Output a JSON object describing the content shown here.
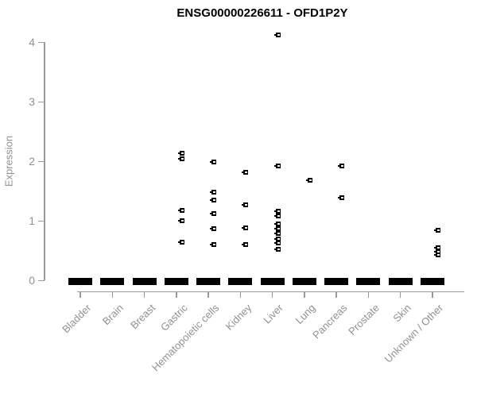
{
  "title": "ENSG00000226611 - OFD1P2Y",
  "colors": {
    "points": "#000000",
    "zero_bars": "#000000",
    "axis": "#9a9a9a",
    "tick_labels": "#919191",
    "title": "#000000",
    "background": "#ffffff"
  },
  "chart_data": {
    "type": "scatter",
    "subtype": "strip-plot-with-collapsed-boxplots",
    "title": "ENSG00000226611 - OFD1P2Y",
    "xlabel": "",
    "ylabel": "Expression",
    "ylim": [
      0,
      4
    ],
    "yticks": [
      0,
      1,
      2,
      3,
      4
    ],
    "grid": "off",
    "legend": "none",
    "marker": "small-open-square-with-left-whisker-stub",
    "zero_bar_description": "thick black horizontal bar at y=0 under every category",
    "categories": [
      "Bladder",
      "Brain",
      "Breast",
      "Gastric",
      "Hematopoietic cells",
      "Kidney",
      "Liver",
      "Lung",
      "Pancreas",
      "Prostate",
      "Skin",
      "Unknown / Other"
    ],
    "series": [
      {
        "name": "Bladder",
        "zero_bar": true,
        "values": []
      },
      {
        "name": "Brain",
        "zero_bar": true,
        "values": []
      },
      {
        "name": "Breast",
        "zero_bar": true,
        "values": []
      },
      {
        "name": "Gastric",
        "zero_bar": true,
        "values": [
          2.14,
          2.05,
          1.18,
          1.01,
          0.65
        ]
      },
      {
        "name": "Hematopoietic cells",
        "zero_bar": true,
        "values": [
          1.99,
          1.49,
          1.35,
          1.12,
          0.87,
          0.61
        ]
      },
      {
        "name": "Kidney",
        "zero_bar": true,
        "values": [
          1.82,
          1.27,
          0.89,
          0.61
        ]
      },
      {
        "name": "Liver",
        "zero_bar": true,
        "values": [
          4.12,
          1.93,
          1.16,
          1.08,
          0.95,
          0.87,
          0.79,
          0.7,
          0.63,
          0.52
        ]
      },
      {
        "name": "Lung",
        "zero_bar": true,
        "values": [
          1.69
        ]
      },
      {
        "name": "Pancreas",
        "zero_bar": true,
        "values": [
          1.93,
          1.39
        ]
      },
      {
        "name": "Prostate",
        "zero_bar": true,
        "values": []
      },
      {
        "name": "Skin",
        "zero_bar": true,
        "values": []
      },
      {
        "name": "Unknown / Other",
        "zero_bar": true,
        "values": [
          0.84,
          0.55,
          0.49,
          0.43
        ]
      }
    ]
  }
}
